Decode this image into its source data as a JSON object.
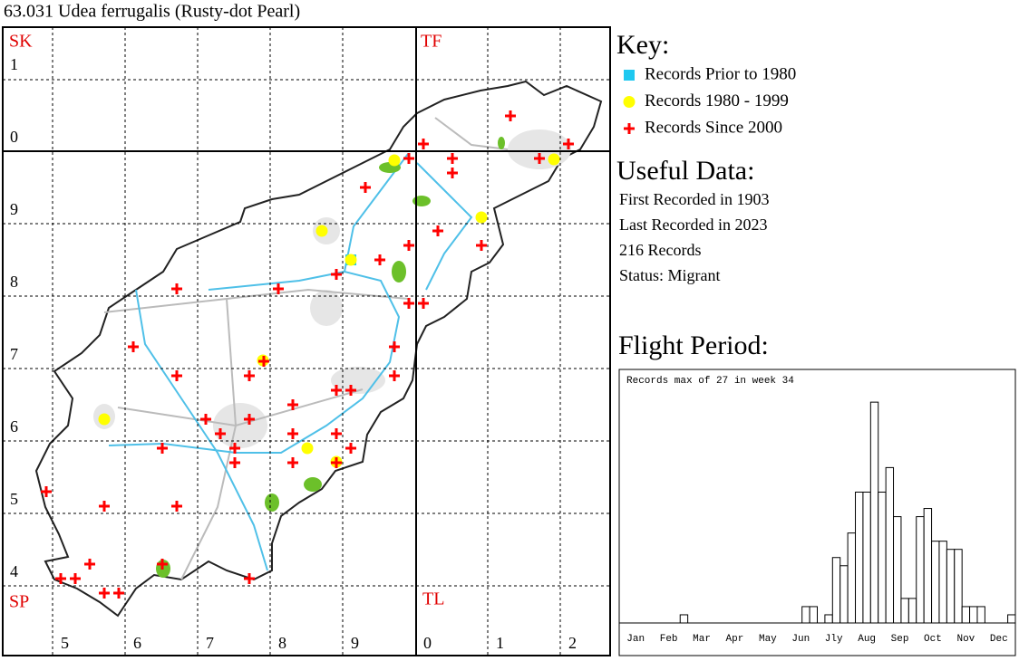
{
  "title": "63.031 Udea ferrugalis (Rusty-dot Pearl)",
  "map": {
    "squares": [
      "SK",
      "TF",
      "SP",
      "TL"
    ],
    "left_labels": [
      "1",
      "0",
      "9",
      "8",
      "7",
      "6",
      "5",
      "4"
    ],
    "bottom_labels": [
      "5",
      "6",
      "7",
      "8",
      "9",
      "0",
      "1",
      "2"
    ]
  },
  "key": {
    "heading": "Key:",
    "items": [
      {
        "label": "Records Prior to 1980",
        "color": "#1ec8f0"
      },
      {
        "label": "Records 1980 - 1999",
        "color": "#ffff00"
      },
      {
        "label": "Records Since 2000",
        "color": "#ff0000"
      }
    ]
  },
  "useful_data": {
    "heading": "Useful Data:",
    "lines": [
      "First Recorded in 1903",
      "Last Recorded in 2023",
      "216 Records",
      "Status: Migrant"
    ]
  },
  "chart_data": {
    "type": "bar",
    "title": "Flight Period:",
    "annotation": "Records max of 27 in week 34",
    "months": [
      "Jan",
      "Feb",
      "Mar",
      "Apr",
      "May",
      "Jun",
      "Jly",
      "Aug",
      "Sep",
      "Oct",
      "Nov",
      "Dec"
    ],
    "values": [
      0,
      0,
      0,
      0,
      0,
      0,
      0,
      0,
      1,
      0,
      0,
      0,
      0,
      0,
      0,
      0,
      0,
      0,
      0,
      0,
      0,
      0,
      0,
      0,
      2,
      2,
      0,
      1,
      8,
      7,
      11,
      16,
      16,
      27,
      16,
      19,
      13,
      3,
      3,
      13,
      14,
      10,
      10,
      9,
      9,
      2,
      2,
      2,
      0,
      0,
      0,
      1
    ],
    "color": "#ffffff",
    "edgecolor": "#000000",
    "ylim": [
      0,
      31
    ]
  }
}
